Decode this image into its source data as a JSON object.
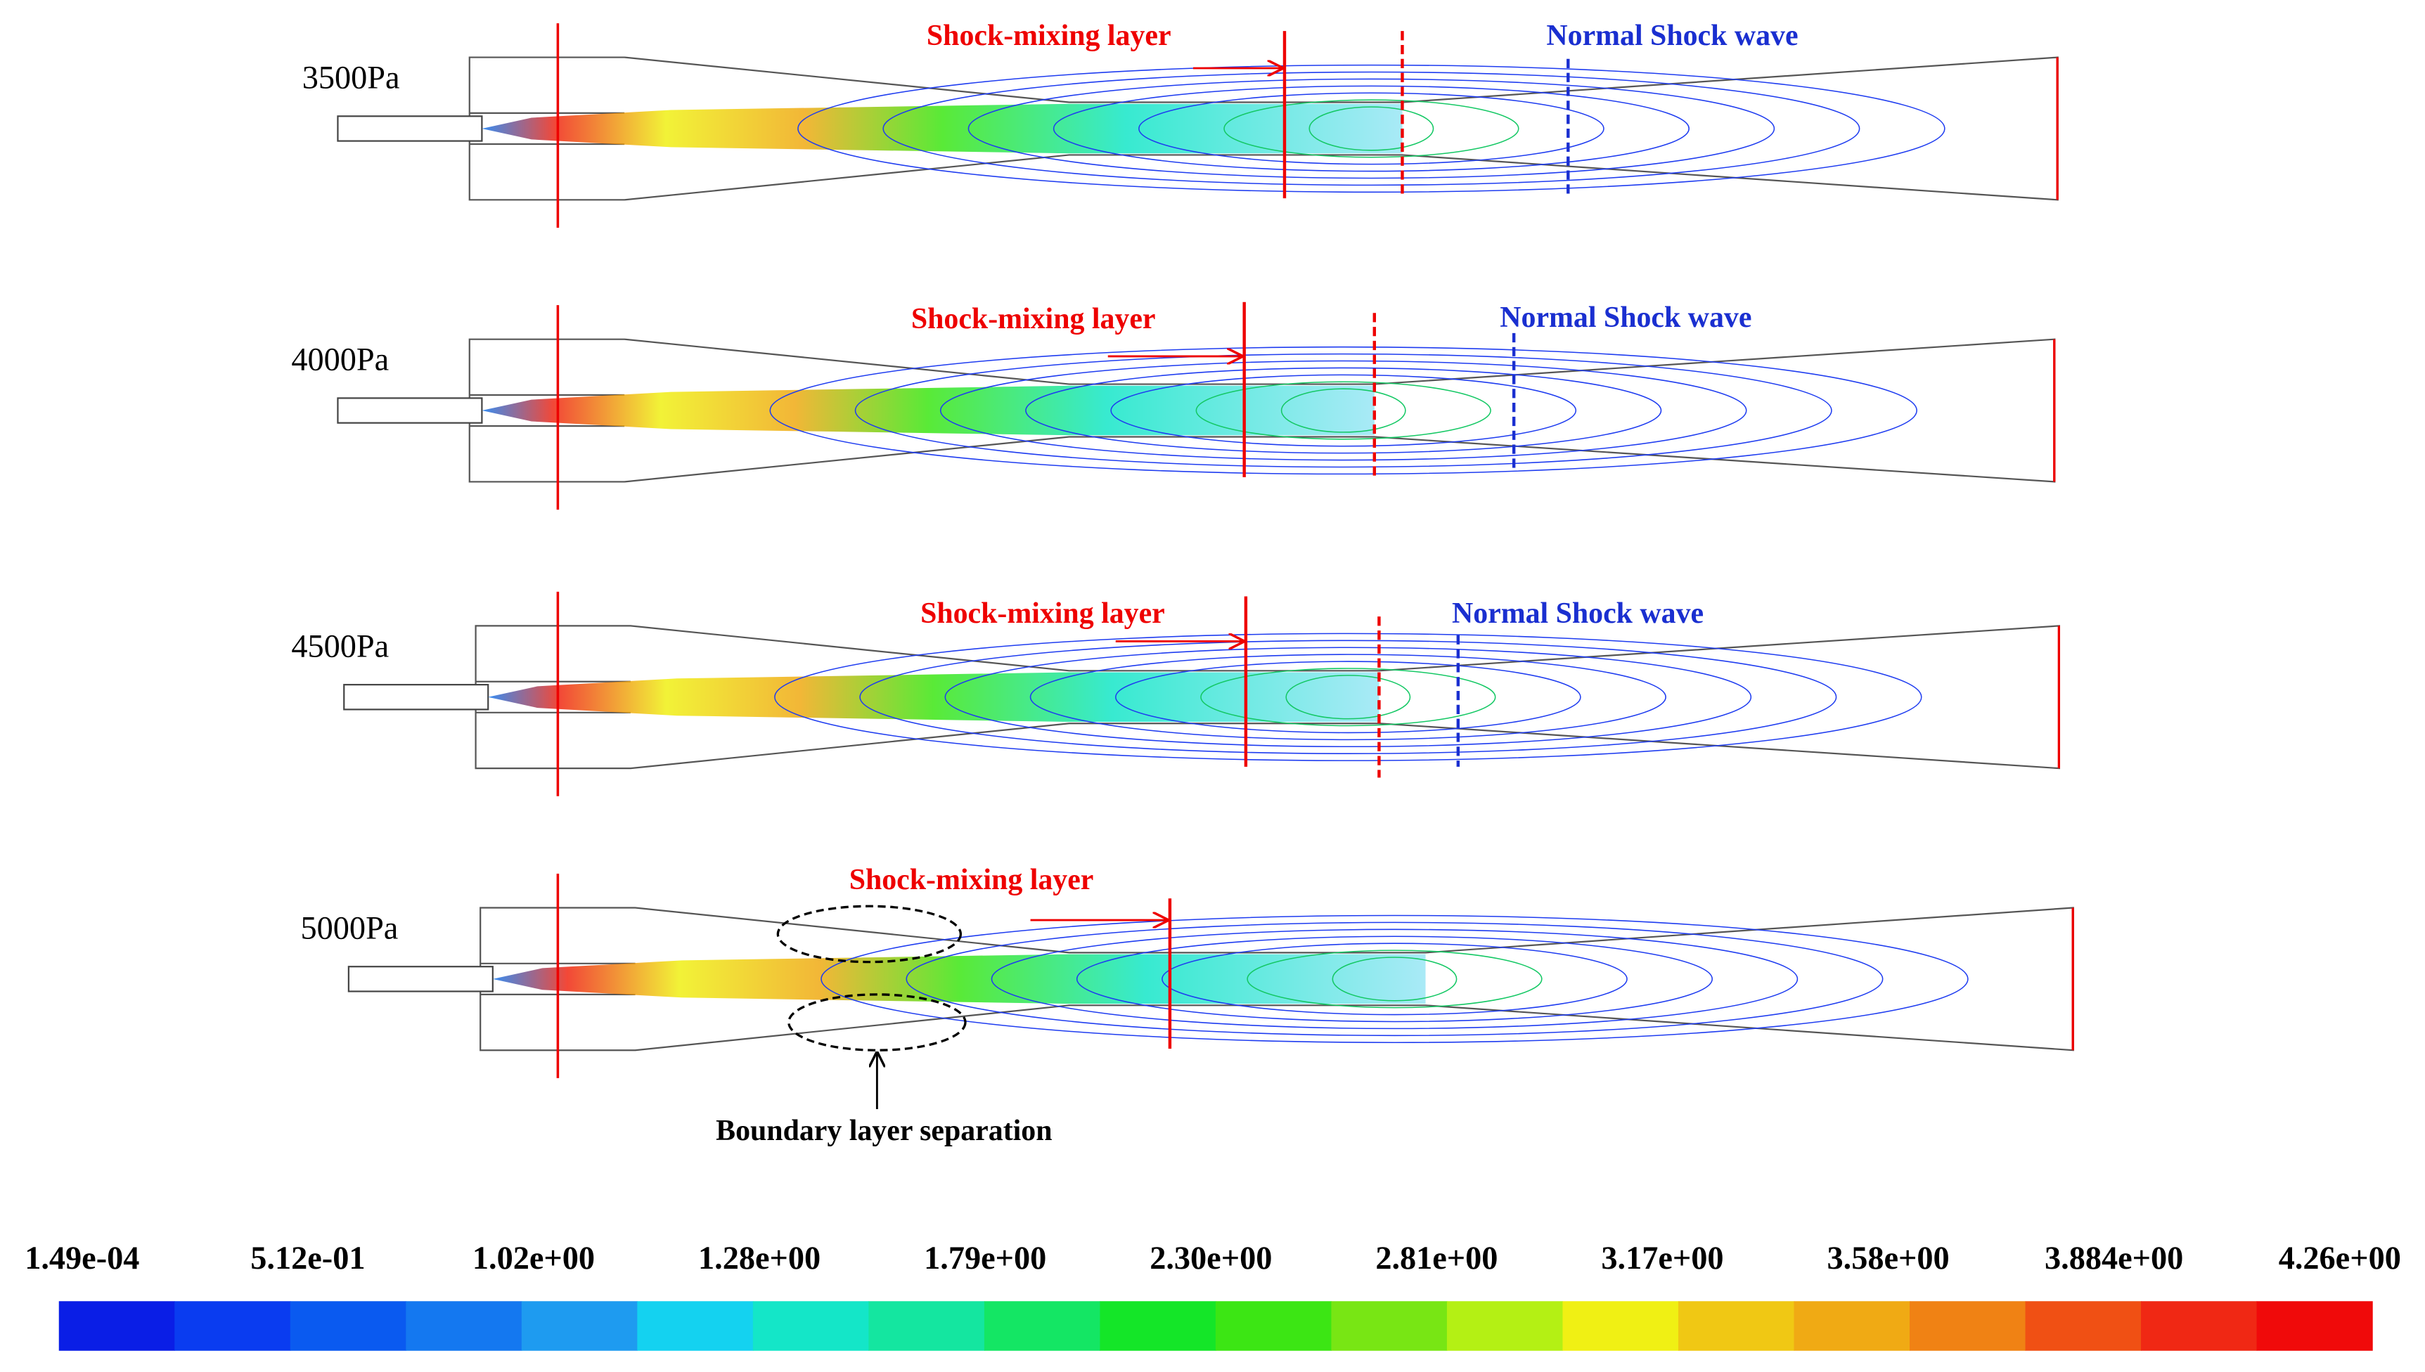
{
  "panels": [
    {
      "label": "3500Pa",
      "mixing": "Shock-mixing layer",
      "shock": "Normal Shock wave"
    },
    {
      "label": "4000Pa",
      "mixing": "Shock-mixing layer",
      "shock": "Normal Shock wave"
    },
    {
      "label": "4500Pa",
      "mixing": "Shock-mixing layer",
      "shock": "Normal Shock wave"
    },
    {
      "label": "5000Pa",
      "mixing": "Shock-mixing layer",
      "separation": "Boundary layer separation"
    }
  ],
  "colorbar": {
    "labels": [
      "1.49e-04",
      "5.12e-01",
      "1.02e+00",
      "1.28e+00",
      "1.79e+00",
      "2.30e+00",
      "2.81e+00",
      "3.17e+00",
      "3.58e+00",
      "3.884e+00",
      "4.26e+00"
    ],
    "colors": [
      "#0a1ee6",
      "#0a3cf0",
      "#0a5af0",
      "#1478f0",
      "#1e9bf0",
      "#14d2f0",
      "#14e6c8",
      "#14e6a0",
      "#14e664",
      "#14e628",
      "#3ce614",
      "#78e614",
      "#b4f014",
      "#f0f014",
      "#f0c814",
      "#f0aa14",
      "#f08214",
      "#f05014",
      "#f02814",
      "#f00a0a"
    ]
  }
}
